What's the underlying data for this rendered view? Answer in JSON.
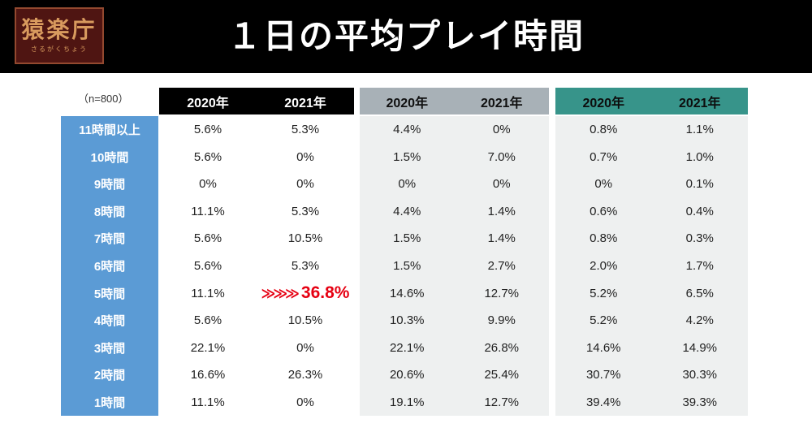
{
  "logo": {
    "main": "猿楽庁",
    "sub": "さるがくちょう"
  },
  "title": "１日の平均プレイ時間",
  "note": "（n=800）",
  "highlight": {
    "arrows": "≫≫≫"
  },
  "colors": {
    "row_label_bg": "#5b9bd5",
    "group1_header_bg": "#000000",
    "group2_header_bg": "#a8b1b7",
    "group3_header_bg": "#37948a",
    "highlight_red": "#e60012"
  },
  "chart_data": {
    "type": "table",
    "title": "１日の平均プレイ時間",
    "sample_size": "（n=800）",
    "column_groups": [
      {
        "theme": "black",
        "label_2020": "2020年",
        "label_2021": "2021年"
      },
      {
        "theme": "gray",
        "label_2020": "2020年",
        "label_2021": "2021年"
      },
      {
        "theme": "teal",
        "label_2020": "2020年",
        "label_2021": "2021年"
      }
    ],
    "rows": [
      {
        "label": "11時間以上",
        "v": [
          "5.6%",
          "5.3%",
          "4.4%",
          "0%",
          "0.8%",
          "1.1%"
        ]
      },
      {
        "label": "10時間",
        "v": [
          "5.6%",
          "0%",
          "1.5%",
          "7.0%",
          "0.7%",
          "1.0%"
        ]
      },
      {
        "label": "9時間",
        "v": [
          "0%",
          "0%",
          "0%",
          "0%",
          "0%",
          "0.1%"
        ]
      },
      {
        "label": "8時間",
        "v": [
          "11.1%",
          "5.3%",
          "4.4%",
          "1.4%",
          "0.6%",
          "0.4%"
        ]
      },
      {
        "label": "7時間",
        "v": [
          "5.6%",
          "10.5%",
          "1.5%",
          "1.4%",
          "0.8%",
          "0.3%"
        ]
      },
      {
        "label": "6時間",
        "v": [
          "5.6%",
          "5.3%",
          "1.5%",
          "2.7%",
          "2.0%",
          "1.7%"
        ]
      },
      {
        "label": "5時間",
        "v": [
          "11.1%",
          "36.8%",
          "14.6%",
          "12.7%",
          "5.2%",
          "6.5%"
        ]
      },
      {
        "label": "4時間",
        "v": [
          "5.6%",
          "10.5%",
          "10.3%",
          "9.9%",
          "5.2%",
          "4.2%"
        ]
      },
      {
        "label": "3時間",
        "v": [
          "22.1%",
          "0%",
          "22.1%",
          "26.8%",
          "14.6%",
          "14.9%"
        ]
      },
      {
        "label": "2時間",
        "v": [
          "16.6%",
          "26.3%",
          "20.6%",
          "25.4%",
          "30.7%",
          "30.3%"
        ]
      },
      {
        "label": "1時間",
        "v": [
          "11.1%",
          "0%",
          "19.1%",
          "12.7%",
          "39.4%",
          "39.3%"
        ]
      }
    ],
    "highlight_cell": {
      "row_label": "5時間",
      "column_group_index": 0,
      "column": "2021年",
      "value": "36.8%",
      "color": "#e60012"
    }
  }
}
